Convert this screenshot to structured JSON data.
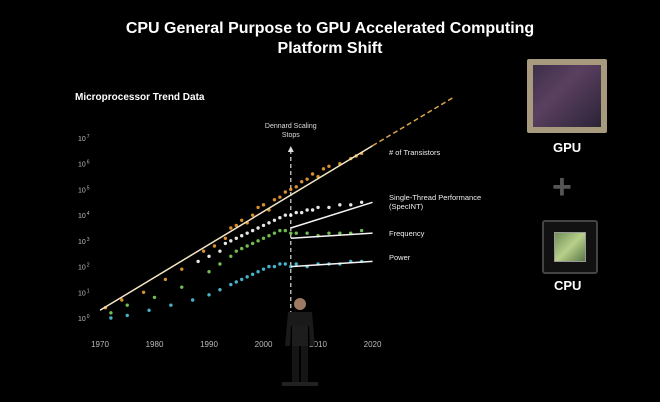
{
  "slide": {
    "title_line1": "CPU General Purpose to GPU Accelerated Computing",
    "title_line2": "Platform Shift",
    "gpu_label": "GPU",
    "cpu_label": "CPU",
    "plus_symbol": "+"
  },
  "chart_data": {
    "type": "scatter",
    "title": "Microprocessor Trend Data",
    "xlabel": "",
    "ylabel": "",
    "log_scale_y": true,
    "grid": false,
    "xlim": [
      1970,
      2021
    ],
    "ylim": [
      0,
      7
    ],
    "x_ticks": [
      "1970",
      "1980",
      "1990",
      "2000",
      "2010",
      "2020"
    ],
    "y_ticks": [
      {
        "base": "10",
        "exp": "7",
        "value": 7
      },
      {
        "base": "10",
        "exp": "6",
        "value": 6
      },
      {
        "base": "10",
        "exp": "5",
        "value": 5
      },
      {
        "base": "10",
        "exp": "4",
        "value": 4
      },
      {
        "base": "10",
        "exp": "3",
        "value": 3
      },
      {
        "base": "10",
        "exp": "2",
        "value": 2
      },
      {
        "base": "10",
        "exp": "1",
        "value": 1
      },
      {
        "base": "10",
        "exp": "0",
        "value": 0
      }
    ],
    "annotation": {
      "text_line1": "Dennard Scaling",
      "text_line2": "Stops",
      "x": 2005
    },
    "series": [
      {
        "name": "# of Transistors",
        "color": "#f0a033",
        "trend": [
          [
            1970,
            0.3
          ],
          [
            2020,
            6.7
          ]
        ],
        "trend_extension": [
          [
            2020,
            6.7
          ],
          [
            2035,
            8.6
          ]
        ],
        "points": [
          [
            1971,
            0.4
          ],
          [
            1974,
            0.7
          ],
          [
            1978,
            1.0
          ],
          [
            1982,
            1.5
          ],
          [
            1985,
            1.9
          ],
          [
            1989,
            2.6
          ],
          [
            1991,
            2.8
          ],
          [
            1993,
            3.1
          ],
          [
            1994,
            3.5
          ],
          [
            1995,
            3.6
          ],
          [
            1996,
            3.8
          ],
          [
            1997,
            3.7
          ],
          [
            1998,
            4.0
          ],
          [
            1999,
            4.3
          ],
          [
            2000,
            4.4
          ],
          [
            2001,
            4.2
          ],
          [
            2002,
            4.6
          ],
          [
            2003,
            4.7
          ],
          [
            2004,
            4.9
          ],
          [
            2005,
            5.0
          ],
          [
            2006,
            5.1
          ],
          [
            2007,
            5.3
          ],
          [
            2008,
            5.4
          ],
          [
            2009,
            5.6
          ],
          [
            2010,
            5.5
          ],
          [
            2011,
            5.8
          ],
          [
            2012,
            5.9
          ],
          [
            2014,
            6.0
          ],
          [
            2016,
            6.2
          ],
          [
            2017,
            6.3
          ],
          [
            2018,
            6.4
          ]
        ]
      },
      {
        "name": "Single-Thread Performance",
        "name_line2": "(SpecINT)",
        "color": "#ffffff",
        "trend": [
          [
            2005,
            3.5
          ],
          [
            2020,
            4.5
          ]
        ],
        "points": [
          [
            1988,
            2.2
          ],
          [
            1990,
            2.4
          ],
          [
            1992,
            2.6
          ],
          [
            1993,
            2.9
          ],
          [
            1994,
            3.0
          ],
          [
            1995,
            3.1
          ],
          [
            1996,
            3.2
          ],
          [
            1997,
            3.3
          ],
          [
            1998,
            3.4
          ],
          [
            1999,
            3.5
          ],
          [
            2000,
            3.6
          ],
          [
            2001,
            3.7
          ],
          [
            2002,
            3.8
          ],
          [
            2003,
            3.9
          ],
          [
            2004,
            4.0
          ],
          [
            2005,
            4.0
          ],
          [
            2006,
            4.1
          ],
          [
            2007,
            4.1
          ],
          [
            2008,
            4.2
          ],
          [
            2009,
            4.2
          ],
          [
            2010,
            4.3
          ],
          [
            2012,
            4.3
          ],
          [
            2014,
            4.4
          ],
          [
            2016,
            4.4
          ],
          [
            2018,
            4.5
          ]
        ]
      },
      {
        "name": "Frequency",
        "color": "#7cd35a",
        "trend": [
          [
            2005,
            3.1
          ],
          [
            2020,
            3.3
          ]
        ],
        "points": [
          [
            1972,
            0.2
          ],
          [
            1975,
            0.5
          ],
          [
            1980,
            0.8
          ],
          [
            1985,
            1.2
          ],
          [
            1990,
            1.8
          ],
          [
            1992,
            2.1
          ],
          [
            1994,
            2.4
          ],
          [
            1995,
            2.6
          ],
          [
            1996,
            2.7
          ],
          [
            1997,
            2.8
          ],
          [
            1998,
            2.9
          ],
          [
            1999,
            3.0
          ],
          [
            2000,
            3.1
          ],
          [
            2001,
            3.2
          ],
          [
            2002,
            3.3
          ],
          [
            2003,
            3.4
          ],
          [
            2004,
            3.4
          ],
          [
            2005,
            3.3
          ],
          [
            2006,
            3.3
          ],
          [
            2008,
            3.3
          ],
          [
            2010,
            3.2
          ],
          [
            2012,
            3.3
          ],
          [
            2014,
            3.3
          ],
          [
            2016,
            3.3
          ],
          [
            2018,
            3.4
          ]
        ]
      },
      {
        "name": "Power",
        "color": "#4fc7e0",
        "trend": [
          [
            2005,
            2.0
          ],
          [
            2020,
            2.2
          ]
        ],
        "points": [
          [
            1972,
            0.0
          ],
          [
            1975,
            0.1
          ],
          [
            1979,
            0.3
          ],
          [
            1983,
            0.5
          ],
          [
            1987,
            0.7
          ],
          [
            1990,
            0.9
          ],
          [
            1992,
            1.1
          ],
          [
            1994,
            1.3
          ],
          [
            1995,
            1.4
          ],
          [
            1996,
            1.5
          ],
          [
            1997,
            1.6
          ],
          [
            1998,
            1.7
          ],
          [
            1999,
            1.8
          ],
          [
            2000,
            1.9
          ],
          [
            2001,
            2.0
          ],
          [
            2002,
            2.0
          ],
          [
            2003,
            2.1
          ],
          [
            2004,
            2.1
          ],
          [
            2005,
            2.0
          ],
          [
            2006,
            2.1
          ],
          [
            2008,
            2.0
          ],
          [
            2010,
            2.1
          ],
          [
            2012,
            2.1
          ],
          [
            2014,
            2.1
          ],
          [
            2016,
            2.2
          ],
          [
            2018,
            2.2
          ]
        ]
      }
    ]
  }
}
